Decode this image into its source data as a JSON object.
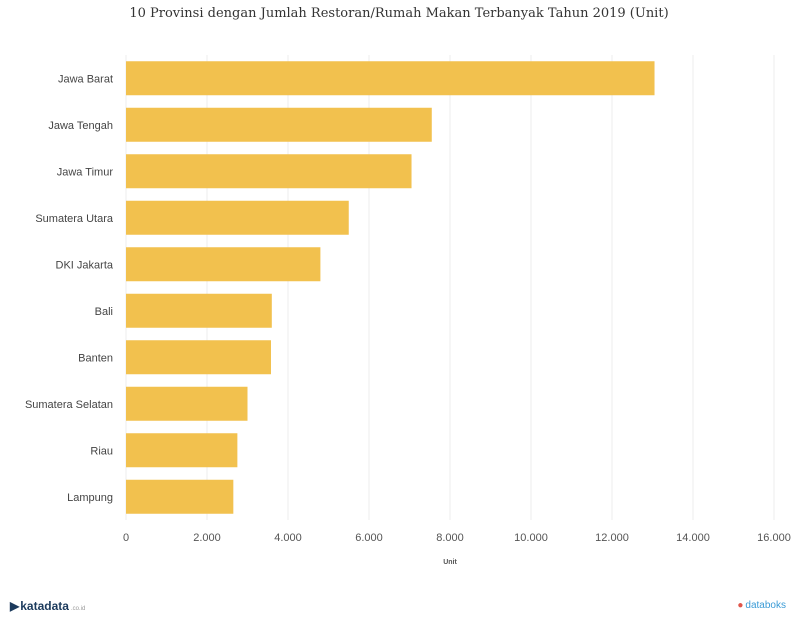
{
  "chart_data": {
    "type": "bar",
    "orientation": "horizontal",
    "title": "10 Provinsi dengan Jumlah Restoran/Rumah Makan Terbanyak Tahun 2019 (Unit)",
    "xlabel": "Unit",
    "ylabel": "",
    "categories": [
      "Jawa Barat",
      "Jawa Tengah",
      "Jawa Timur",
      "Sumatera Utara",
      "DKI Jakarta",
      "Bali",
      "Banten",
      "Sumatera Selatan",
      "Riau",
      "Lampung"
    ],
    "values": [
      13050,
      7550,
      7050,
      5500,
      4800,
      3600,
      3580,
      3000,
      2750,
      2650
    ],
    "xlim": [
      0,
      16000
    ],
    "ticks": [
      "0",
      "2.000",
      "4.000",
      "6.000",
      "8.000",
      "10.000",
      "12.000",
      "14.000",
      "16.000"
    ],
    "bar_color": "#f2c14e",
    "grid": true
  },
  "footer": {
    "brand_left": "katadata",
    "brand_left_suffix": ".co.id",
    "brand_right": "databoks"
  }
}
